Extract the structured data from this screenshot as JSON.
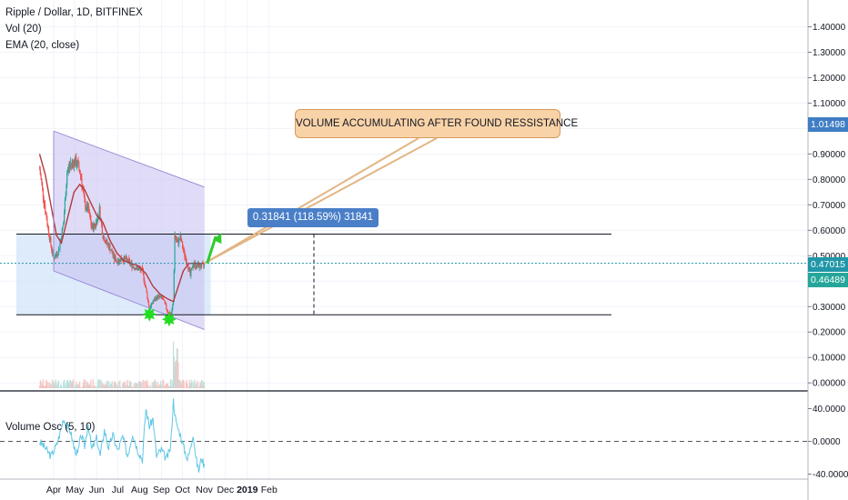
{
  "legend": {
    "symbol": "Ripple / Dollar, 1D, BITFINEX",
    "volume": "Vol (20)",
    "ema": "EMA (20, close)"
  },
  "oscillator": {
    "label": "Volume Osc (5, 10)"
  },
  "annotation": {
    "text": "VOLUME ACCUMULATING AFTER FOUND RESSISTANCE"
  },
  "measure": {
    "text": "0.31841 (118.59%) 31841"
  },
  "price_tags": {
    "current": {
      "value": "1.01498",
      "color": "#3f7ec4"
    },
    "ema": {
      "value": "0.47015",
      "color": "#2196a8"
    },
    "last": {
      "value": "0.46489",
      "color": "#26a69a"
    }
  },
  "colors": {
    "up": "#26a69a",
    "down": "#ef5350",
    "ema": "#b33a3a",
    "channel": "#9b8cd8",
    "range_fill": "#cfe3fa",
    "oscillator": "#5ec6e6",
    "arrow": "#2ecc2e"
  },
  "chart_data": [
    {
      "type": "candlestick",
      "title": "Ripple / Dollar, 1D, BITFINEX",
      "ylim": [
        0.0,
        1.5
      ],
      "y_ticks": [
        "0.00000",
        "0.10000",
        "0.20000",
        "0.30000",
        "0.40000",
        "0.50000",
        "0.60000",
        "0.70000",
        "0.80000",
        "0.90000",
        "1.00000",
        "1.10000",
        "1.20000",
        "1.30000",
        "1.40000"
      ],
      "x_ticks": [
        "Apr",
        "May",
        "Jun",
        "Jul",
        "Aug",
        "Sep",
        "Oct",
        "Nov",
        "Dec",
        "2019",
        "Feb"
      ],
      "close_path": [
        [
          "Mar 12",
          0.84
        ],
        [
          "Mar 20",
          0.68
        ],
        [
          "Mar 28",
          0.54
        ],
        [
          "Apr 1",
          0.49
        ],
        [
          "Apr 8",
          0.52
        ],
        [
          "Apr 15",
          0.63
        ],
        [
          "Apr 20",
          0.83
        ],
        [
          "Apr 25",
          0.86
        ],
        [
          "Apr 30",
          0.87
        ],
        [
          "May 5",
          0.86
        ],
        [
          "May 10",
          0.81
        ],
        [
          "May 15",
          0.7
        ],
        [
          "May 20",
          0.68
        ],
        [
          "May 25",
          0.61
        ],
        [
          "May 30",
          0.62
        ],
        [
          "Jun 5",
          0.68
        ],
        [
          "Jun 10",
          0.58
        ],
        [
          "Jun 15",
          0.55
        ],
        [
          "Jun 20",
          0.53
        ],
        [
          "Jun 26",
          0.49
        ],
        [
          "Jul 1",
          0.48
        ],
        [
          "Jul 8",
          0.49
        ],
        [
          "Jul 15",
          0.48
        ],
        [
          "Jul 22",
          0.46
        ],
        [
          "Jul 29",
          0.45
        ],
        [
          "Aug 5",
          0.44
        ],
        [
          "Aug 10",
          0.37
        ],
        [
          "Aug 15",
          0.29
        ],
        [
          "Aug 20",
          0.32
        ],
        [
          "Aug 27",
          0.34
        ],
        [
          "Sep 3",
          0.33
        ],
        [
          "Sep 10",
          0.28
        ],
        [
          "Sep 15",
          0.27
        ],
        [
          "Sep 18",
          0.32
        ],
        [
          "Sep 20",
          0.58
        ],
        [
          "Sep 23",
          0.55
        ],
        [
          "Sep 28",
          0.57
        ],
        [
          "Oct 3",
          0.51
        ],
        [
          "Oct 8",
          0.47
        ],
        [
          "Oct 12",
          0.42
        ],
        [
          "Oct 16",
          0.47
        ],
        [
          "Oct 20",
          0.46
        ],
        [
          "Oct 27",
          0.46
        ],
        [
          "Nov 1",
          0.46
        ]
      ],
      "ema_path": [
        [
          "Mar 12",
          0.9
        ],
        [
          "Mar 20",
          0.82
        ],
        [
          "Mar 28",
          0.7
        ],
        [
          "Apr 5",
          0.58
        ],
        [
          "Apr 12",
          0.55
        ],
        [
          "Apr 20",
          0.64
        ],
        [
          "Apr 30",
          0.75
        ],
        [
          "May 8",
          0.78
        ],
        [
          "May 15",
          0.76
        ],
        [
          "May 25",
          0.7
        ],
        [
          "Jun 1",
          0.66
        ],
        [
          "Jun 10",
          0.63
        ],
        [
          "Jun 20",
          0.56
        ],
        [
          "Jun 30",
          0.51
        ],
        [
          "Jul 10",
          0.48
        ],
        [
          "Jul 20",
          0.47
        ],
        [
          "Jul 30",
          0.46
        ],
        [
          "Aug 10",
          0.43
        ],
        [
          "Aug 20",
          0.38
        ],
        [
          "Aug 30",
          0.35
        ],
        [
          "Sep 10",
          0.33
        ],
        [
          "Sep 18",
          0.32
        ],
        [
          "Sep 25",
          0.38
        ],
        [
          "Oct 2",
          0.44
        ],
        [
          "Oct 10",
          0.47
        ],
        [
          "Oct 20",
          0.47
        ],
        [
          "Nov 1",
          0.47
        ]
      ],
      "channel": {
        "upper": [
          [
            "Apr 1",
            0.99
          ],
          [
            "Nov 1",
            0.77
          ]
        ],
        "lower": [
          [
            "Apr 1",
            0.44
          ],
          [
            "Nov 1",
            0.21
          ]
        ]
      },
      "range": {
        "high": 0.585,
        "low": 0.268,
        "from": "Mar 12",
        "to": "Nov 10"
      },
      "markers": [
        [
          "Aug 15",
          0.27
        ],
        [
          "Sep 12",
          0.25
        ]
      ],
      "arrow": {
        "from": [
          "Nov 5",
          0.47
        ],
        "to": [
          "Nov 25",
          0.59
        ]
      }
    },
    {
      "type": "line",
      "title": "Volume Osc (5, 10)",
      "y_ticks": [
        "40.0000",
        "0.0000",
        "-40.0000"
      ],
      "ylim": [
        -40,
        50
      ],
      "values": [
        [
          "Mar 12",
          0
        ],
        [
          "Mar 20",
          -8
        ],
        [
          "Mar 28",
          -18
        ],
        [
          "Apr 5",
          -5
        ],
        [
          "Apr 10",
          10
        ],
        [
          "Apr 15",
          28
        ],
        [
          "Apr 20",
          18
        ],
        [
          "Apr 25",
          12
        ],
        [
          "Apr 30",
          -8
        ],
        [
          "May 5",
          -16
        ],
        [
          "May 10",
          8
        ],
        [
          "May 15",
          -6
        ],
        [
          "May 20",
          22
        ],
        [
          "May 25",
          -10
        ],
        [
          "Jun 1",
          4
        ],
        [
          "Jun 6",
          -18
        ],
        [
          "Jun 12",
          14
        ],
        [
          "Jun 18",
          -8
        ],
        [
          "Jun 24",
          8
        ],
        [
          "Jul 1",
          -12
        ],
        [
          "Jul 8",
          6
        ],
        [
          "Jul 15",
          -18
        ],
        [
          "Jul 22",
          10
        ],
        [
          "Jul 29",
          -10
        ],
        [
          "Aug 5",
          -22
        ],
        [
          "Aug 10",
          40
        ],
        [
          "Aug 15",
          18
        ],
        [
          "Aug 20",
          28
        ],
        [
          "Aug 25",
          -18
        ],
        [
          "Sep 1",
          -10
        ],
        [
          "Sep 8",
          -22
        ],
        [
          "Sep 14",
          -8
        ],
        [
          "Sep 18",
          50
        ],
        [
          "Sep 22",
          22
        ],
        [
          "Sep 28",
          8
        ],
        [
          "Oct 3",
          -8
        ],
        [
          "Oct 8",
          -22
        ],
        [
          "Oct 12",
          -10
        ],
        [
          "Oct 16",
          10
        ],
        [
          "Oct 20",
          -20
        ],
        [
          "Oct 24",
          -36
        ],
        [
          "Oct 28",
          -20
        ],
        [
          "Nov 1",
          -30
        ]
      ]
    }
  ]
}
